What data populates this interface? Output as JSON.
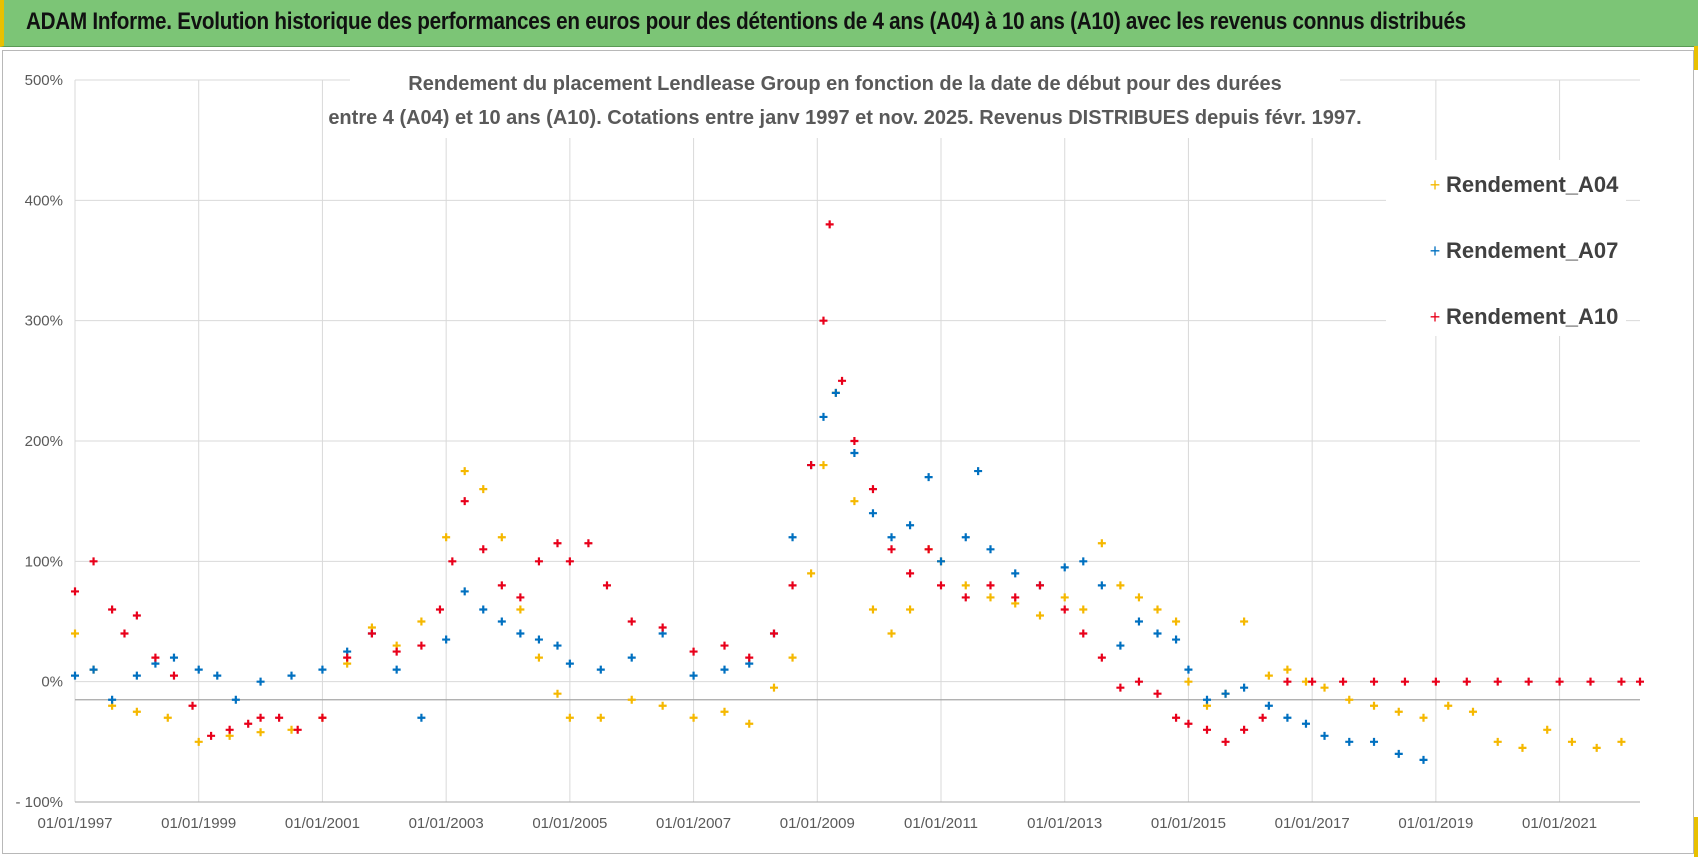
{
  "banner": {
    "title": "ADAM Informe. Evolution historique des performances en euros pour des détentions de 4 ans (A04) à 10 ans (A10) avec les revenus connus distribués"
  },
  "colors": {
    "banner_bg": "#7cc576",
    "A04": "#f5b800",
    "A07": "#0070c0",
    "A10": "#e8001a",
    "grid": "#d9d9d9",
    "axis": "#a6a6a6"
  },
  "chart_data": {
    "type": "scatter",
    "title_lines": [
      "Rendement du placement Lendlease Group en fonction de la date de début pour des durées",
      "entre 4 (A04) et 10 ans (A10).  Cotations entre janv 1997 et nov. 2025. Revenus DISTRIBUES depuis févr. 1997."
    ],
    "xlabel": "",
    "ylabel": "",
    "xlim": [
      1997.0,
      2022.3
    ],
    "ylim": [
      -100,
      500
    ],
    "y_ticks": [
      500,
      400,
      300,
      200,
      100,
      0,
      -100
    ],
    "y_tick_labels": [
      "500%",
      "400%",
      "300%",
      "200%",
      "100%",
      "0%",
      "- 100%"
    ],
    "x_ticks": [
      1997,
      1999,
      2001,
      2003,
      2005,
      2007,
      2009,
      2011,
      2013,
      2015,
      2017,
      2019,
      2021
    ],
    "x_tick_labels": [
      "01/01/1997",
      "01/01/1999",
      "01/01/2001",
      "01/01/2003",
      "01/01/2005",
      "01/01/2007",
      "01/01/2009",
      "01/01/2011",
      "01/01/2013",
      "01/01/2015",
      "01/01/2017",
      "01/01/2019",
      "01/01/2021"
    ],
    "marker": "+",
    "legend_position": "top-right",
    "series": [
      {
        "name": "Rendement_A04",
        "x": [
          1997.0,
          1997.3,
          1997.6,
          1998.0,
          1998.5,
          1999.0,
          1999.5,
          2000.0,
          2000.5,
          2001.0,
          2001.4,
          2001.8,
          2002.2,
          2002.6,
          2003.0,
          2003.3,
          2003.6,
          2003.9,
          2004.2,
          2004.5,
          2004.8,
          2005.0,
          2005.5,
          2006.0,
          2006.5,
          2007.0,
          2007.5,
          2007.9,
          2008.3,
          2008.6,
          2008.9,
          2009.1,
          2009.3,
          2009.6,
          2009.9,
          2010.2,
          2010.5,
          2010.8,
          2011.0,
          2011.4,
          2011.8,
          2012.2,
          2012.6,
          2013.0,
          2013.3,
          2013.6,
          2013.9,
          2014.2,
          2014.5,
          2014.8,
          2015.0,
          2015.3,
          2015.6,
          2015.9,
          2016.3,
          2016.6,
          2016.9,
          2017.2,
          2017.6,
          2018.0,
          2018.4,
          2018.8,
          2019.2,
          2019.6,
          2020.0,
          2020.4,
          2020.8,
          2021.2,
          2021.6,
          2022.0
        ],
        "y": [
          40,
          10,
          -20,
          -25,
          -30,
          -50,
          -45,
          -42,
          -40,
          -30,
          15,
          45,
          30,
          50,
          120,
          175,
          160,
          120,
          60,
          20,
          -10,
          -30,
          -30,
          -15,
          -20,
          -30,
          -25,
          -35,
          -5,
          20,
          90,
          180,
          240,
          150,
          60,
          40,
          60,
          110,
          100,
          80,
          70,
          65,
          55,
          70,
          60,
          115,
          80,
          70,
          60,
          50,
          0,
          -20,
          -10,
          50,
          5,
          10,
          0,
          -5,
          -15,
          -20,
          -25,
          -30,
          -20,
          -25,
          -50,
          -55,
          -40,
          -50,
          -55,
          -50
        ]
      },
      {
        "name": "Rendement_A07",
        "x": [
          1997.0,
          1997.3,
          1997.6,
          1998.0,
          1998.3,
          1998.6,
          1999.0,
          1999.3,
          1999.6,
          2000.0,
          2000.5,
          2001.0,
          2001.4,
          2001.8,
          2002.2,
          2002.6,
          2003.0,
          2003.3,
          2003.6,
          2003.9,
          2004.2,
          2004.5,
          2004.8,
          2005.0,
          2005.5,
          2006.0,
          2006.5,
          2007.0,
          2007.5,
          2007.9,
          2008.3,
          2008.6,
          2008.9,
          2009.1,
          2009.3,
          2009.6,
          2009.9,
          2010.2,
          2010.5,
          2010.8,
          2011.0,
          2011.4,
          2011.6,
          2011.8,
          2012.2,
          2012.6,
          2013.0,
          2013.3,
          2013.6,
          2013.9,
          2014.2,
          2014.5,
          2014.8,
          2015.0,
          2015.3,
          2015.6,
          2015.9,
          2016.3,
          2016.6,
          2016.9,
          2017.2,
          2017.6,
          2018.0,
          2018.4,
          2018.8
        ],
        "y": [
          5,
          10,
          -15,
          5,
          15,
          20,
          10,
          5,
          -15,
          0,
          5,
          10,
          25,
          40,
          10,
          -30,
          35,
          75,
          60,
          50,
          40,
          35,
          30,
          15,
          10,
          20,
          40,
          5,
          10,
          15,
          40,
          120,
          180,
          220,
          240,
          190,
          140,
          120,
          130,
          170,
          100,
          120,
          175,
          110,
          90,
          80,
          95,
          100,
          80,
          30,
          50,
          40,
          35,
          10,
          -15,
          -10,
          -5,
          -20,
          -30,
          -35,
          -45,
          -50,
          -50,
          -60,
          -65
        ]
      },
      {
        "name": "Rendement_A10",
        "x": [
          1997.0,
          1997.3,
          1997.6,
          1997.8,
          1998.0,
          1998.3,
          1998.6,
          1998.9,
          1999.2,
          1999.5,
          1999.8,
          2000.0,
          2000.3,
          2000.6,
          2001.0,
          2001.4,
          2001.8,
          2002.2,
          2002.6,
          2002.9,
          2003.1,
          2003.3,
          2003.6,
          2003.9,
          2004.2,
          2004.5,
          2004.8,
          2005.0,
          2005.3,
          2005.6,
          2006.0,
          2006.5,
          2007.0,
          2007.5,
          2007.9,
          2008.3,
          2008.6,
          2008.9,
          2009.1,
          2009.2,
          2009.4,
          2009.6,
          2009.9,
          2010.2,
          2010.5,
          2010.8,
          2011.0,
          2011.4,
          2011.8,
          2012.2,
          2012.6,
          2013.0,
          2013.3,
          2013.6,
          2013.9,
          2014.2,
          2014.5,
          2014.8,
          2015.0,
          2015.3,
          2015.6,
          2015.9,
          2016.2,
          2016.6,
          2017.0,
          2017.5,
          2018.0,
          2018.5,
          2019.0,
          2019.5,
          2020.0,
          2020.5,
          2021.0,
          2021.5,
          2022.0,
          2022.3
        ],
        "y": [
          75,
          100,
          60,
          40,
          55,
          20,
          5,
          -20,
          -45,
          -40,
          -35,
          -30,
          -30,
          -40,
          -30,
          20,
          40,
          25,
          30,
          60,
          100,
          150,
          110,
          80,
          70,
          100,
          115,
          100,
          115,
          80,
          50,
          45,
          25,
          30,
          20,
          40,
          80,
          180,
          300,
          380,
          250,
          200,
          160,
          110,
          90,
          110,
          80,
          70,
          80,
          70,
          80,
          60,
          40,
          20,
          -5,
          0,
          -10,
          -30,
          -35,
          -40,
          -50,
          -40,
          -30,
          0,
          0,
          0,
          0,
          0,
          0,
          0,
          0,
          0,
          0,
          0,
          0,
          0
        ]
      }
    ]
  }
}
